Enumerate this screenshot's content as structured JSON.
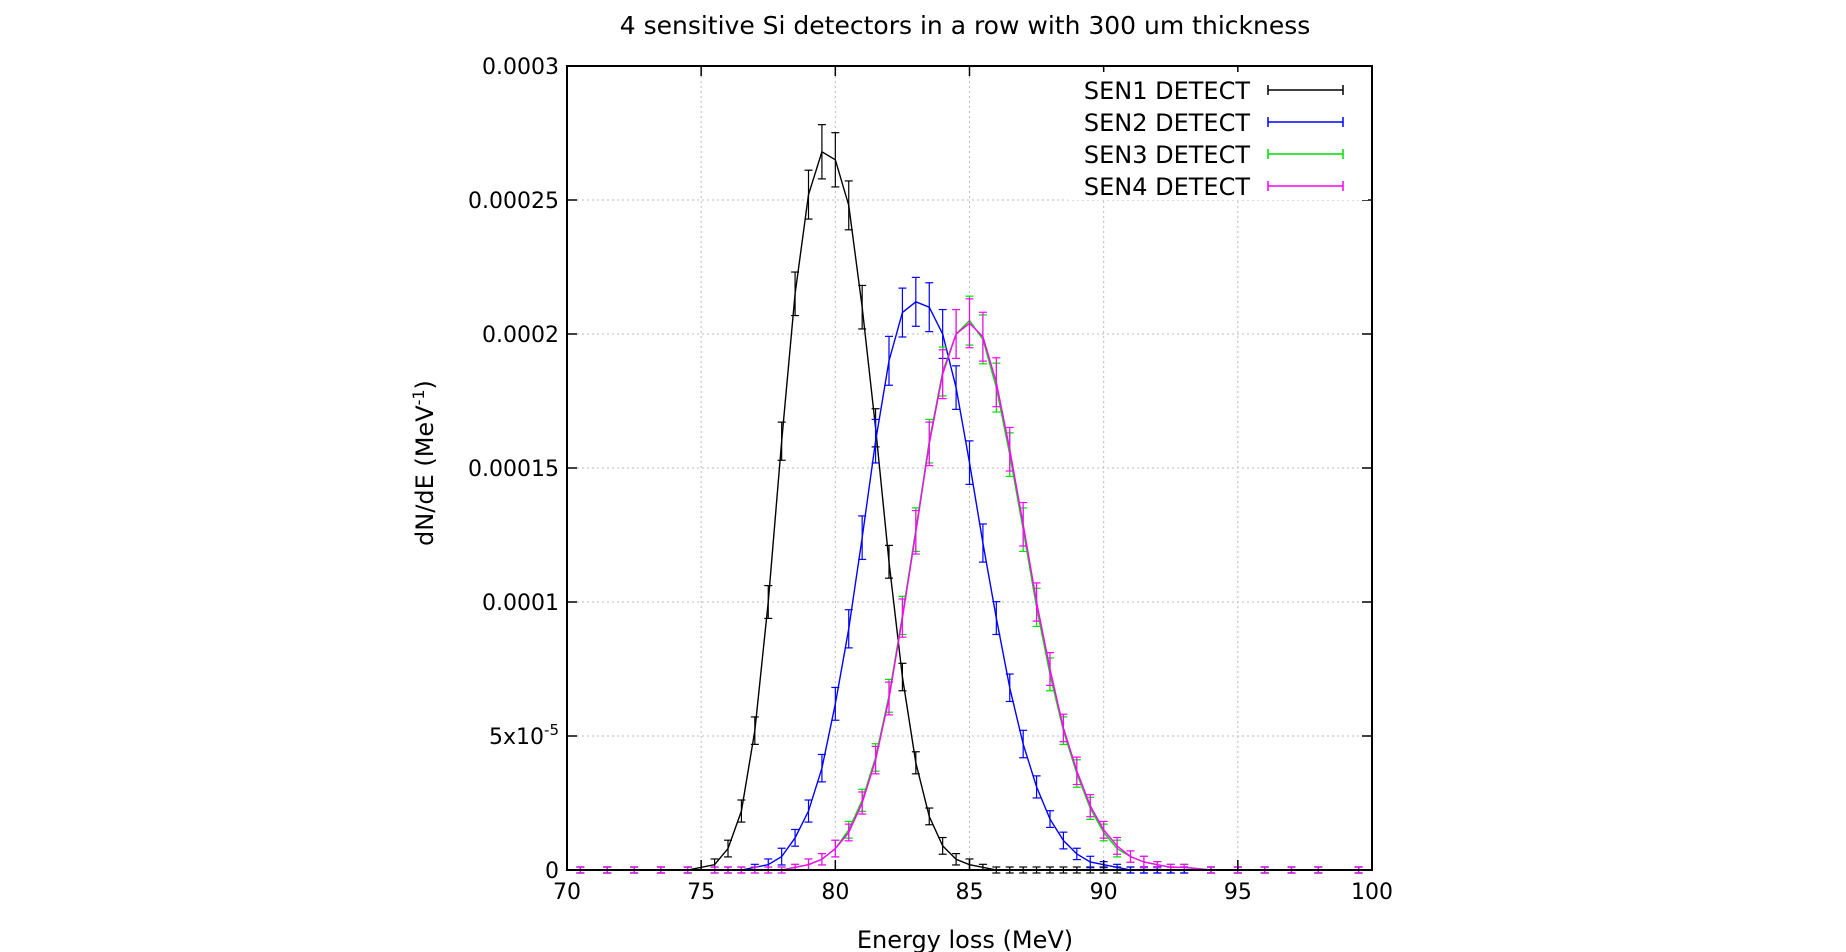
{
  "chart_data": {
    "type": "line",
    "title": "4 sensitive Si detectors in a row with 300 um thickness",
    "xlabel": "Energy loss (MeV)",
    "ylabel_main": "dN/dE (MeV",
    "ylabel_sup": "-1",
    "ylabel_end": ")",
    "xlim": [
      70,
      100
    ],
    "ylim": [
      0,
      0.0003
    ],
    "grid": true,
    "legend_position": "top-right",
    "x_ticks": [
      {
        "value": 70,
        "label": "70"
      },
      {
        "value": 75,
        "label": "75"
      },
      {
        "value": 80,
        "label": "80"
      },
      {
        "value": 85,
        "label": "85"
      },
      {
        "value": 90,
        "label": "90"
      },
      {
        "value": 95,
        "label": "95"
      },
      {
        "value": 100,
        "label": "100"
      }
    ],
    "y_ticks": [
      {
        "value": 0,
        "label": "0",
        "sup": ""
      },
      {
        "value": 5e-05,
        "label": "5x10",
        "sup": "-5"
      },
      {
        "value": 0.0001,
        "label": "0.0001",
        "sup": ""
      },
      {
        "value": 0.00015,
        "label": "0.00015",
        "sup": ""
      },
      {
        "value": 0.0002,
        "label": "0.0002",
        "sup": ""
      },
      {
        "value": 0.00025,
        "label": "0.00025",
        "sup": ""
      },
      {
        "value": 0.0003,
        "label": "0.0003",
        "sup": ""
      }
    ],
    "x": [
      70.5,
      71.5,
      72.5,
      73.5,
      74.5,
      75.5,
      76.0,
      76.5,
      77.0,
      77.5,
      78.0,
      78.5,
      79.0,
      79.5,
      80.0,
      80.5,
      81.0,
      81.5,
      82.0,
      82.5,
      83.0,
      83.5,
      84.0,
      84.5,
      85.0,
      85.5,
      86.0,
      86.5,
      87.0,
      87.5,
      88.0,
      88.5,
      89.0,
      89.5,
      90.0,
      90.5,
      91.0,
      91.5,
      92.0,
      92.5,
      93.0,
      94.0,
      95.0,
      96.0,
      97.0,
      98.0,
      99.5
    ],
    "series": [
      {
        "name": "SEN1 DETECT",
        "color": "#000000",
        "values": [
          0,
          0,
          0,
          0,
          0,
          2e-06,
          8e-06,
          2.2e-05,
          5.2e-05,
          0.0001,
          0.00016,
          0.000215,
          0.000252,
          0.000268,
          0.000265,
          0.000248,
          0.00021,
          0.000165,
          0.000115,
          7.2e-05,
          4e-05,
          2e-05,
          9e-06,
          4e-06,
          2e-06,
          1e-06,
          0,
          0,
          0,
          0,
          0,
          0,
          0,
          0,
          0,
          0,
          0,
          0,
          0,
          0,
          0,
          0,
          0,
          0,
          0,
          0,
          0
        ],
        "errors": [
          0,
          0,
          0,
          0,
          0,
          1e-06,
          2e-06,
          3e-06,
          4e-06,
          5e-06,
          6e-06,
          7e-06,
          8e-06,
          9e-06,
          9e-06,
          8e-06,
          7e-06,
          6e-06,
          5e-06,
          4e-06,
          3e-06,
          2e-06,
          2e-06,
          1e-06,
          1e-06,
          0,
          0,
          0,
          0,
          0,
          0,
          0,
          0,
          0,
          0,
          0,
          0,
          0,
          0,
          0,
          0,
          0,
          0,
          0,
          0,
          0,
          0
        ]
      },
      {
        "name": "SEN2 DETECT",
        "color": "#0000ff",
        "values": [
          0,
          0,
          0,
          0,
          0,
          0,
          0,
          0,
          1e-06,
          2e-06,
          5e-06,
          1.2e-05,
          2.2e-05,
          3.8e-05,
          6.2e-05,
          9e-05,
          0.000124,
          0.00016,
          0.00019,
          0.000208,
          0.000212,
          0.00021,
          0.0002,
          0.00018,
          0.000152,
          0.000122,
          9.4e-05,
          6.8e-05,
          4.7e-05,
          3.1e-05,
          1.9e-05,
          1.1e-05,
          6e-06,
          3e-06,
          2e-06,
          1e-06,
          0,
          0,
          0,
          0,
          0,
          0,
          0,
          0,
          0,
          0,
          0
        ],
        "errors": [
          0,
          0,
          0,
          0,
          0,
          0,
          0,
          0,
          0,
          1e-06,
          2e-06,
          2e-06,
          3e-06,
          4e-06,
          5e-06,
          6e-06,
          7e-06,
          7e-06,
          8e-06,
          8e-06,
          8e-06,
          8e-06,
          8e-06,
          7e-06,
          7e-06,
          6e-06,
          5e-06,
          4e-06,
          4e-06,
          3e-06,
          2e-06,
          2e-06,
          1e-06,
          1e-06,
          0,
          0,
          0,
          0,
          0,
          0,
          0,
          0,
          0,
          0,
          0,
          0,
          0
        ]
      },
      {
        "name": "SEN3 DETECT",
        "color": "#00dd00",
        "values": [
          0,
          0,
          0,
          0,
          0,
          0,
          0,
          0,
          0,
          0,
          0,
          1e-06,
          2e-06,
          4e-06,
          8e-06,
          1.5e-05,
          2.6e-05,
          4.2e-05,
          6.5e-05,
          9.5e-05,
          0.000127,
          0.00016,
          0.000186,
          0.0002,
          0.000205,
          0.000198,
          0.00018,
          0.000155,
          0.000127,
          9.8e-05,
          7.3e-05,
          5.2e-05,
          3.6e-05,
          2.3e-05,
          1.4e-05,
          8e-06,
          5e-06,
          3e-06,
          2e-06,
          1e-06,
          1e-06,
          0,
          0,
          0,
          0,
          0,
          0
        ],
        "errors": [
          0,
          0,
          0,
          0,
          0,
          0,
          0,
          0,
          0,
          0,
          0,
          0,
          1e-06,
          1e-06,
          2e-06,
          2e-06,
          3e-06,
          4e-06,
          5e-06,
          6e-06,
          7e-06,
          7e-06,
          8e-06,
          8e-06,
          8e-06,
          8e-06,
          8e-06,
          7e-06,
          7e-06,
          6e-06,
          5e-06,
          4e-06,
          4e-06,
          3e-06,
          2e-06,
          2e-06,
          1e-06,
          1e-06,
          0,
          0,
          0,
          0,
          0,
          0,
          0,
          0,
          0
        ]
      },
      {
        "name": "SEN4 DETECT",
        "color": "#ff00ff",
        "values": [
          0,
          0,
          0,
          0,
          0,
          0,
          0,
          0,
          0,
          0,
          0,
          1e-06,
          2e-06,
          4e-06,
          8e-06,
          1.4e-05,
          2.5e-05,
          4.1e-05,
          6.4e-05,
          9.4e-05,
          0.000126,
          0.000159,
          0.000185,
          0.0002,
          0.000204,
          0.000199,
          0.000182,
          0.000157,
          0.000129,
          0.0001,
          7.5e-05,
          5.3e-05,
          3.7e-05,
          2.4e-05,
          1.5e-05,
          9e-06,
          5e-06,
          3e-06,
          2e-06,
          1e-06,
          1e-06,
          0,
          0,
          0,
          0,
          0,
          0
        ],
        "errors": [
          0,
          0,
          0,
          0,
          0,
          0,
          0,
          0,
          0,
          0,
          0,
          0,
          1e-06,
          1e-06,
          2e-06,
          2e-06,
          3e-06,
          4e-06,
          5e-06,
          6e-06,
          7e-06,
          7e-06,
          8e-06,
          8e-06,
          8e-06,
          8e-06,
          8e-06,
          7e-06,
          7e-06,
          6e-06,
          5e-06,
          4e-06,
          4e-06,
          3e-06,
          2e-06,
          2e-06,
          1e-06,
          1e-06,
          0,
          0,
          0,
          0,
          0,
          0,
          0,
          0,
          0
        ]
      }
    ]
  }
}
